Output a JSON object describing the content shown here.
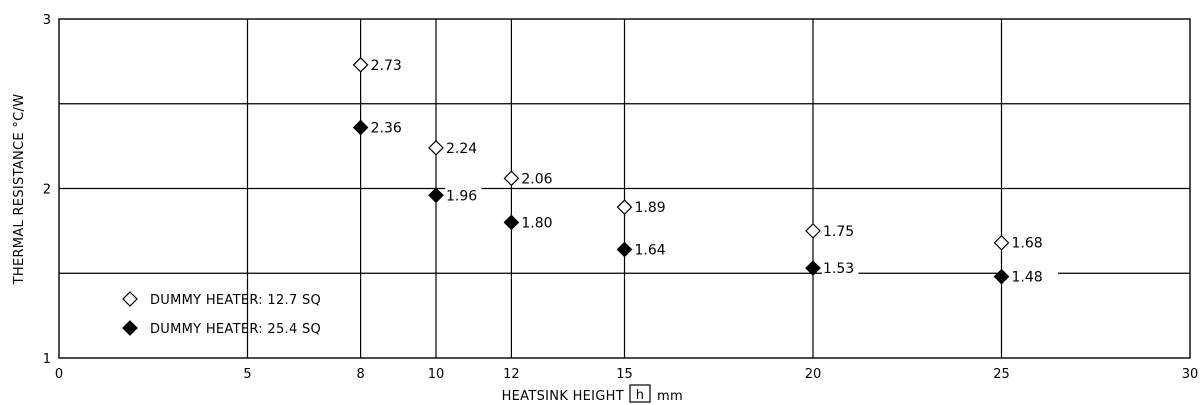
{
  "chart_data": {
    "type": "scatter",
    "xlabel": "HEATSINK HEIGHT",
    "xlabel_symbol": "h",
    "xlabel_unit": "mm",
    "ylabel": "THERMAL  RESISTANCE  °C/W",
    "xlim": [
      0,
      30
    ],
    "ylim": [
      1,
      3
    ],
    "x_ticks": [
      "0",
      "5",
      "8",
      "10",
      "12",
      "15",
      "20",
      "25",
      "30"
    ],
    "y_ticks": [
      "1",
      "2",
      "3"
    ],
    "grid": true,
    "legend_position": "bottom-left",
    "x": [
      8,
      10,
      12,
      15,
      20,
      25
    ],
    "series": [
      {
        "name": "DUMMY HEATER: 12.7 SQ",
        "marker": "diamond-open",
        "values": [
          2.73,
          2.24,
          2.06,
          1.89,
          1.75,
          1.68
        ],
        "labels": [
          "2.73",
          "2.24",
          "2.06",
          "1.89",
          "1.75",
          "1.68"
        ]
      },
      {
        "name": "DUMMY HEATER: 25.4 SQ",
        "marker": "diamond-filled",
        "values": [
          2.36,
          1.96,
          1.8,
          1.64,
          1.53,
          1.48
        ],
        "labels": [
          "2.36",
          "1.96",
          "1.80",
          "1.64",
          "1.53",
          "1.48"
        ]
      }
    ]
  }
}
